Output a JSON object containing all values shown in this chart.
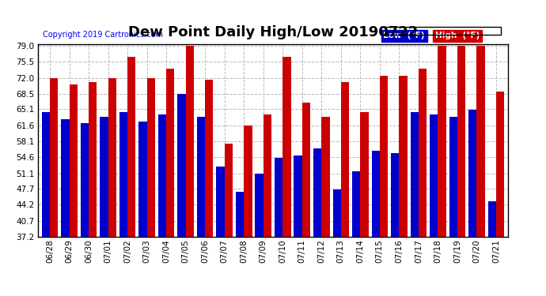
{
  "title": "Dew Point Daily High/Low 20190722",
  "copyright": "Copyright 2019 Cartronics.com",
  "dates": [
    "06/28",
    "06/29",
    "06/30",
    "07/01",
    "07/02",
    "07/03",
    "07/04",
    "07/05",
    "07/06",
    "07/07",
    "07/08",
    "07/09",
    "07/10",
    "07/11",
    "07/12",
    "07/13",
    "07/14",
    "07/15",
    "07/16",
    "07/17",
    "07/18",
    "07/19",
    "07/20",
    "07/21"
  ],
  "low": [
    64.5,
    63.0,
    62.0,
    63.5,
    64.5,
    62.5,
    64.0,
    68.5,
    63.5,
    52.5,
    47.0,
    51.0,
    54.5,
    55.0,
    56.5,
    47.5,
    51.5,
    56.0,
    55.5,
    64.5,
    64.0,
    63.5,
    65.0,
    45.0
  ],
  "high": [
    72.0,
    70.5,
    71.0,
    72.0,
    76.5,
    72.0,
    74.0,
    79.0,
    71.5,
    57.5,
    61.5,
    64.0,
    76.5,
    66.5,
    63.5,
    71.0,
    64.5,
    72.5,
    72.5,
    74.0,
    79.0,
    79.0,
    79.0,
    69.0
  ],
  "low_color": "#0000cc",
  "high_color": "#cc0000",
  "bg_color": "#ffffff",
  "ylim_min": 37.2,
  "ylim_max": 79.0,
  "yticks": [
    37.2,
    40.7,
    44.2,
    47.7,
    51.1,
    54.6,
    58.1,
    61.6,
    65.1,
    68.5,
    72.0,
    75.5,
    79.0
  ],
  "grid_color": "#bbbbbb",
  "title_fontsize": 13,
  "tick_fontsize": 7.5,
  "bar_bottom": 37.2
}
